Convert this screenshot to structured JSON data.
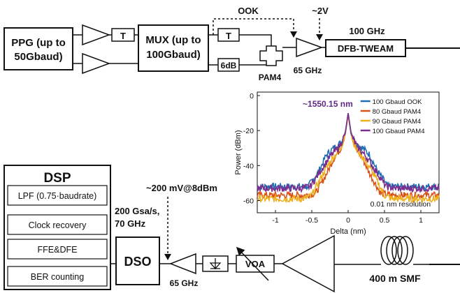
{
  "blocks": {
    "ppg": [
      "PPG (up to",
      "50Gbaud)"
    ],
    "mux": [
      "MUX (up to",
      "100Gbaud)"
    ],
    "delay_symbol": "T",
    "attenuator": "6dB",
    "ook": "OOK",
    "pam4": "PAM4",
    "bias": "~2V",
    "amp_top": "65 GHz",
    "dfb_bw": "100 GHz",
    "dfb": "DFB-TWEAM",
    "smf": "400 m SMF",
    "voa": "VOA",
    "amp_bottom": "65 GHz",
    "dso": "DSO",
    "dso_spec": [
      "200 Gsa/s,",
      "70 GHz"
    ],
    "power": "~200 mV@8dBm"
  },
  "dsp": {
    "title": "DSP",
    "items": [
      "LPF (0.75·baudrate)",
      "Clock recovery",
      "FFE&DFE",
      "BER counting"
    ]
  },
  "chart_data": {
    "type": "line",
    "xlabel": "Delta (nm)",
    "ylabel": "Power (dBm)",
    "xlim": [
      -1.25,
      1.25
    ],
    "ylim": [
      -67,
      2
    ],
    "xticks": [
      -1,
      -0.5,
      0,
      0.5,
      1
    ],
    "yticks": [
      0,
      -20,
      -40,
      -60
    ],
    "grid": false,
    "legend_position": "top-right",
    "annotation": "~1550.15 nm",
    "annotation_color": "#5e2a84",
    "resolution_note": "0.01 nm resolution",
    "series": [
      {
        "name": "100 Gbaud OOK",
        "color": "#1f6fb4",
        "x": [
          -1.25,
          -0.9,
          -0.7,
          -0.55,
          -0.4,
          -0.3,
          -0.2,
          -0.1,
          -0.04,
          0,
          0.04,
          0.1,
          0.2,
          0.3,
          0.4,
          0.55,
          0.7,
          0.9,
          1.25
        ],
        "y": [
          -52,
          -52,
          -52,
          -52,
          -43,
          -34,
          -30,
          -27,
          -21,
          -10,
          -21,
          -27,
          -30,
          -34,
          -43,
          -52,
          -52,
          -52,
          -52
        ]
      },
      {
        "name": "80 Gbaud PAM4",
        "color": "#d95319",
        "x": [
          -1.25,
          -0.9,
          -0.6,
          -0.45,
          -0.3,
          -0.2,
          -0.1,
          -0.04,
          0,
          0.04,
          0.1,
          0.2,
          0.3,
          0.45,
          0.6,
          0.9,
          1.25
        ],
        "y": [
          -57,
          -57,
          -57,
          -56,
          -45,
          -36,
          -30,
          -22,
          -11,
          -22,
          -30,
          -36,
          -45,
          -56,
          -57,
          -57,
          -57
        ]
      },
      {
        "name": "90 Gbaud PAM4",
        "color": "#edb120",
        "x": [
          -1.25,
          -0.9,
          -0.6,
          -0.5,
          -0.35,
          -0.22,
          -0.1,
          -0.04,
          0,
          0.04,
          0.1,
          0.22,
          0.35,
          0.5,
          0.6,
          0.9,
          1.25
        ],
        "y": [
          -59,
          -59,
          -59,
          -57,
          -45,
          -36,
          -30,
          -22,
          -11,
          -22,
          -30,
          -36,
          -45,
          -57,
          -59,
          -59,
          -59
        ]
      },
      {
        "name": "100 Gbaud PAM4",
        "color": "#7e2f8e",
        "x": [
          -1.25,
          -0.9,
          -0.65,
          -0.52,
          -0.38,
          -0.25,
          -0.12,
          -0.04,
          0,
          0.04,
          0.12,
          0.25,
          0.38,
          0.52,
          0.65,
          0.9,
          1.25
        ],
        "y": [
          -53,
          -53,
          -53,
          -52,
          -43,
          -35,
          -29,
          -22,
          -10,
          -22,
          -29,
          -35,
          -43,
          -52,
          -53,
          -53,
          -53
        ]
      }
    ]
  }
}
